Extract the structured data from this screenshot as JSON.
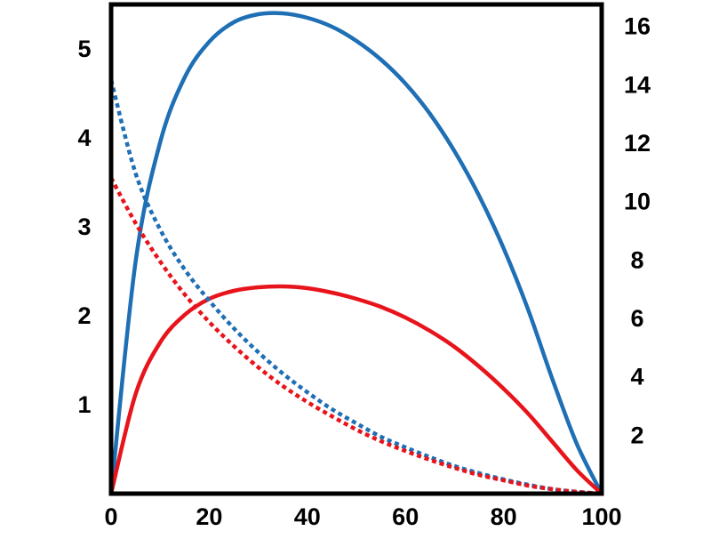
{
  "chart_data": {
    "type": "line",
    "title": "",
    "xlabel": "",
    "ylabel": "",
    "y2label": "",
    "xlim": [
      0,
      100
    ],
    "ylim": [
      0,
      5.5
    ],
    "y2lim": [
      0,
      16.75
    ],
    "grid": false,
    "legend": "none",
    "x_ticks": [
      0,
      20,
      40,
      60,
      80,
      100
    ],
    "y_ticks": [
      1,
      2,
      3,
      4,
      5
    ],
    "y2_ticks": [
      2,
      4,
      6,
      8,
      10,
      12,
      14,
      16
    ],
    "series": [
      {
        "name": "blue-solid",
        "color": "#1f6fb5",
        "style": "solid",
        "axis": "left",
        "x": [
          0,
          5,
          10,
          15,
          20,
          25,
          30,
          35,
          40,
          45,
          50,
          55,
          60,
          65,
          70,
          75,
          80,
          85,
          90,
          95,
          100
        ],
        "y": [
          0,
          2.61,
          3.95,
          4.68,
          5.08,
          5.3,
          5.39,
          5.4,
          5.35,
          5.25,
          5.09,
          4.88,
          4.61,
          4.27,
          3.85,
          3.35,
          2.76,
          2.07,
          1.28,
          0.55,
          0
        ]
      },
      {
        "name": "red-solid",
        "color": "#e8141b",
        "style": "solid",
        "axis": "left",
        "x": [
          0,
          5,
          10,
          15,
          20,
          25,
          30,
          35,
          40,
          45,
          50,
          55,
          60,
          65,
          70,
          75,
          80,
          85,
          90,
          95,
          100
        ],
        "y": [
          0,
          1.12,
          1.7,
          2.01,
          2.19,
          2.28,
          2.32,
          2.33,
          2.31,
          2.26,
          2.19,
          2.1,
          1.98,
          1.83,
          1.65,
          1.43,
          1.18,
          0.9,
          0.58,
          0.26,
          0
        ]
      },
      {
        "name": "blue-dotted",
        "color": "#1f6fb5",
        "style": "dotted",
        "axis": "left",
        "x": [
          0,
          5,
          10,
          15,
          20,
          25,
          30,
          35,
          40,
          45,
          50,
          55,
          60,
          65,
          70,
          75,
          80,
          85,
          90,
          95,
          100
        ],
        "y": [
          4.65,
          3.6,
          2.97,
          2.52,
          2.17,
          1.86,
          1.59,
          1.35,
          1.14,
          0.95,
          0.79,
          0.64,
          0.52,
          0.41,
          0.31,
          0.23,
          0.16,
          0.1,
          0.05,
          0.02,
          0
        ]
      },
      {
        "name": "red-dotted",
        "color": "#e8141b",
        "style": "dotted",
        "axis": "left",
        "x": [
          0,
          5,
          10,
          15,
          20,
          25,
          30,
          35,
          40,
          45,
          50,
          55,
          60,
          65,
          70,
          75,
          80,
          85,
          90,
          95,
          100
        ],
        "y": [
          3.55,
          3.04,
          2.61,
          2.24,
          1.93,
          1.66,
          1.42,
          1.21,
          1.03,
          0.87,
          0.72,
          0.59,
          0.48,
          0.38,
          0.29,
          0.21,
          0.15,
          0.09,
          0.05,
          0.02,
          0
        ]
      }
    ]
  }
}
